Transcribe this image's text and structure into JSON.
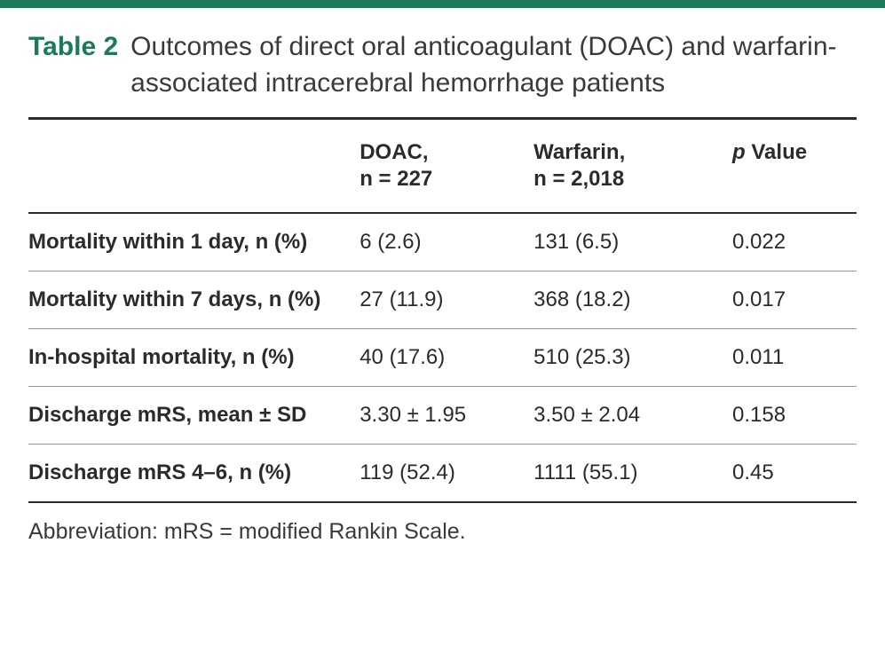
{
  "colors": {
    "accent": "#1a7a5a",
    "rule_heavy": "#2b2b2b",
    "rule_light": "#9a9a9a",
    "text": "#2b2b2b",
    "background": "#ffffff"
  },
  "typography": {
    "family": "Segoe UI / Helvetica Neue / Arial",
    "title_size_pt": 22,
    "cell_size_pt": 18
  },
  "table": {
    "label": "Table 2",
    "title": "Outcomes of direct oral anticoagulant (DOAC) and warfarin-associated intracerebral hemorrhage patients",
    "columns": [
      {
        "line1": "DOAC,",
        "line2": "n = 227"
      },
      {
        "line1": "Warfarin,",
        "line2": "n = 2,018"
      },
      {
        "p_prefix": "p",
        "p_rest": " Value"
      }
    ],
    "rows": [
      {
        "label": "Mortality within 1 day, n (%)",
        "doac": "6 (2.6)",
        "warfarin": "131 (6.5)",
        "p": "0.022"
      },
      {
        "label": "Mortality within 7 days, n (%)",
        "doac": "27 (11.9)",
        "warfarin": "368 (18.2)",
        "p": "0.017"
      },
      {
        "label": "In-hospital mortality, n (%)",
        "doac": "40 (17.6)",
        "warfarin": "510 (25.3)",
        "p": "0.011"
      },
      {
        "label": "Discharge mRS, mean ± SD",
        "doac": "3.30 ± 1.95",
        "warfarin": "3.50 ± 2.04",
        "p": "0.158"
      },
      {
        "label": "Discharge mRS 4–6, n (%)",
        "doac": "119 (52.4)",
        "warfarin": "1111 (55.1)",
        "p": "0.45"
      }
    ],
    "footnote": "Abbreviation: mRS = modified Rankin Scale."
  }
}
